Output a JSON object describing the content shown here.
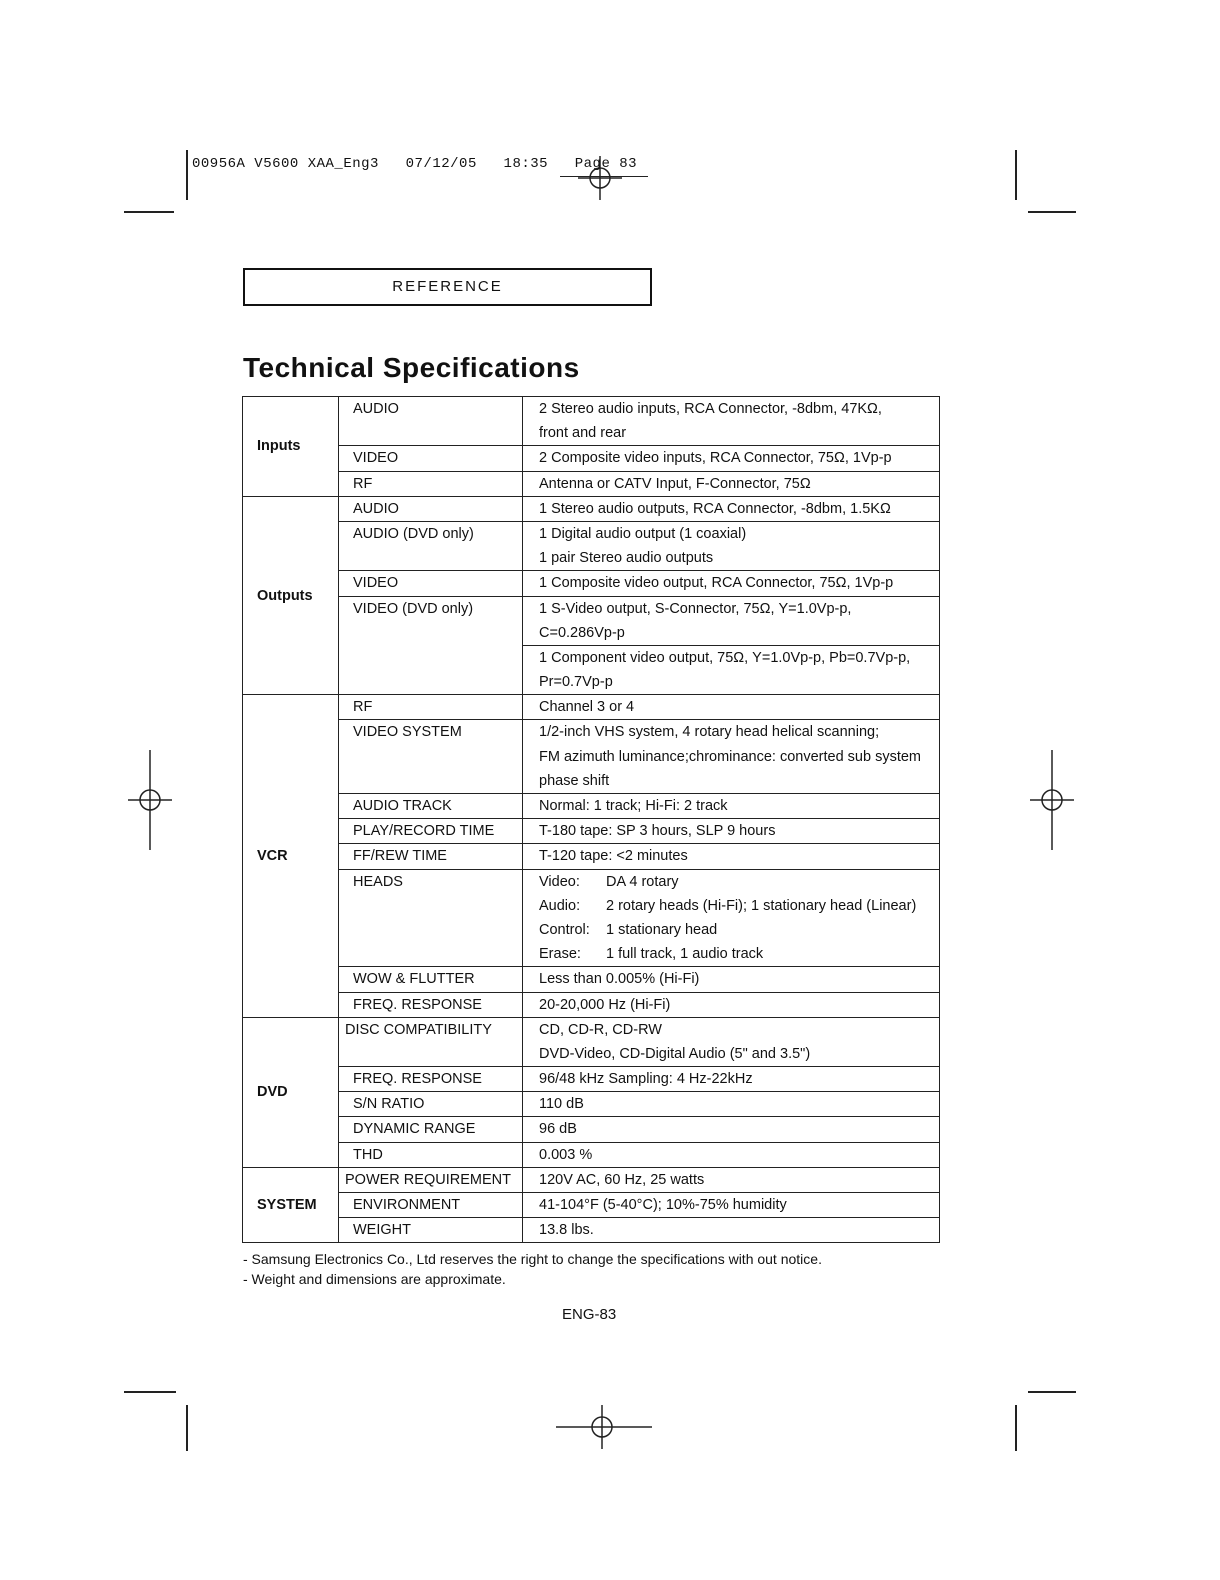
{
  "slug": "00956A V5600 XAA_Eng3   07/12/05   18:35   Page 83",
  "section_label": "REFERENCE",
  "title": "Technical Specifications",
  "groups": [
    {
      "name": "Inputs",
      "rows": [
        {
          "param": "AUDIO",
          "cells": [
            [
              "2 Stereo audio inputs, RCA Connector, -8dbm, 47KΩ,",
              "front and rear"
            ]
          ]
        },
        {
          "param": "VIDEO",
          "cells": [
            [
              "2 Composite video inputs, RCA Connector, 75Ω, 1Vp-p"
            ]
          ]
        },
        {
          "param": "RF",
          "cells": [
            [
              "Antenna or CATV Input, F-Connector, 75Ω"
            ]
          ]
        }
      ]
    },
    {
      "name": "Outputs",
      "rows": [
        {
          "param": "AUDIO",
          "cells": [
            [
              "1 Stereo audio outputs, RCA Connector, -8dbm, 1.5KΩ"
            ]
          ]
        },
        {
          "param": "AUDIO (DVD only)",
          "cells": [
            [
              "1 Digital audio output  (1 coaxial)",
              "1 pair Stereo audio outputs"
            ]
          ]
        },
        {
          "param": "VIDEO",
          "cells": [
            [
              "1 Composite video output, RCA Connector, 75Ω, 1Vp-p"
            ]
          ]
        },
        {
          "param": "VIDEO (DVD only)",
          "cells": [
            [
              "1 S-Video output, S-Connector, 75Ω, Y=1.0Vp-p,",
              "C=0.286Vp-p"
            ],
            [
              "1 Component video output, 75Ω, Y=1.0Vp-p, Pb=0.7Vp-p,",
              "Pr=0.7Vp-p"
            ]
          ]
        }
      ]
    },
    {
      "name": "VCR",
      "rows": [
        {
          "param": "RF",
          "cells": [
            [
              "Channel 3 or 4"
            ]
          ]
        },
        {
          "param": "VIDEO SYSTEM",
          "cells": [
            [
              "1/2-inch VHS system, 4 rotary head helical scanning;",
              "FM azimuth luminance;chrominance: converted sub system",
              "phase shift"
            ]
          ]
        },
        {
          "param": "AUDIO TRACK",
          "cells": [
            [
              "Normal: 1 track; Hi-Fi: 2 track"
            ]
          ]
        },
        {
          "param": "PLAY/RECORD TIME",
          "cells": [
            [
              "T-180 tape: SP 3 hours, SLP 9 hours"
            ]
          ]
        },
        {
          "param": "FF/REW TIME",
          "cells": [
            [
              "T-120 tape: <2 minutes"
            ]
          ]
        },
        {
          "param": "HEADS",
          "heads": [
            [
              "Video:",
              "DA 4 rotary"
            ],
            [
              "Audio:",
              "2 rotary heads (Hi-Fi); 1 stationary head (Linear)"
            ],
            [
              "Control:",
              "1 stationary head"
            ],
            [
              "Erase:",
              "1 full track, 1 audio track"
            ]
          ]
        },
        {
          "param": "WOW & FLUTTER",
          "cells": [
            [
              "Less than 0.005% (Hi-Fi)"
            ]
          ]
        },
        {
          "param": "FREQ. RESPONSE",
          "cells": [
            [
              "20-20,000 Hz (Hi-Fi)"
            ]
          ]
        }
      ]
    },
    {
      "name": "DVD",
      "rows": [
        {
          "param": "DISC COMPATIBILITY",
          "cells": [
            [
              "CD, CD-R, CD-RW",
              "DVD-Video, CD-Digital Audio (5\" and 3.5\")"
            ]
          ]
        },
        {
          "param": "FREQ. RESPONSE",
          "cells": [
            [
              "96/48 kHz Sampling: 4 Hz-22kHz"
            ]
          ]
        },
        {
          "param": "S/N RATIO",
          "cells": [
            [
              "110 dB"
            ]
          ]
        },
        {
          "param": "DYNAMIC RANGE",
          "cells": [
            [
              "96 dB"
            ]
          ]
        },
        {
          "param": "THD",
          "cells": [
            [
              "0.003 %"
            ]
          ]
        }
      ]
    },
    {
      "name": "SYSTEM",
      "rows": [
        {
          "param": "POWER REQUIREMENT",
          "cells": [
            [
              "120V AC, 60 Hz, 25 watts"
            ]
          ]
        },
        {
          "param": "ENVIRONMENT",
          "cells": [
            [
              "41-104°F (5-40°C); 10%-75% humidity"
            ]
          ]
        },
        {
          "param": "WEIGHT",
          "cells": [
            [
              "13.8 lbs."
            ]
          ]
        }
      ]
    }
  ],
  "notes": [
    "- Samsung Electronics Co., Ltd reserves the right to change the specifications with out notice.",
    "- Weight and dimensions are approximate."
  ],
  "page_number": "ENG-83"
}
